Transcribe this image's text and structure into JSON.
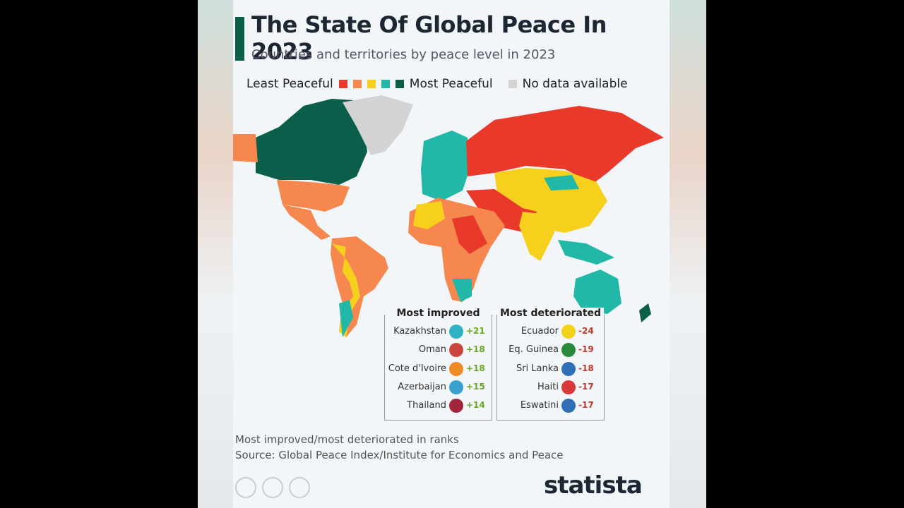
{
  "header": {
    "title": "The State Of Global Peace In 2023",
    "subtitle": "Countries and territories by peace level in 2023"
  },
  "legend": {
    "least": "Least Peaceful",
    "most": "Most Peaceful",
    "no_data": "No data available"
  },
  "tables": [
    {
      "title": "Most improved",
      "rows": [
        {
          "country": "Kazakhstan",
          "change": "+21"
        },
        {
          "country": "Oman",
          "change": "+18"
        },
        {
          "country": "Cote d'Ivoire",
          "change": "+18"
        },
        {
          "country": "Azerbaijan",
          "change": "+15"
        },
        {
          "country": "Thailand",
          "change": "+14"
        }
      ]
    },
    {
      "title": "Most deteriorated",
      "rows": [
        {
          "country": "Ecuador",
          "change": "-24"
        },
        {
          "country": "Eq. Guinea",
          "change": "-19"
        },
        {
          "country": "Sri Lanka",
          "change": "-18"
        },
        {
          "country": "Haiti",
          "change": "-17"
        },
        {
          "country": "Eswatini",
          "change": "-17"
        }
      ]
    }
  ],
  "footer": {
    "note": "Most improved/most deteriorated in ranks",
    "source": "Source: Global Peace Index/Institute for Economics and Peace"
  },
  "brand": "statista"
}
